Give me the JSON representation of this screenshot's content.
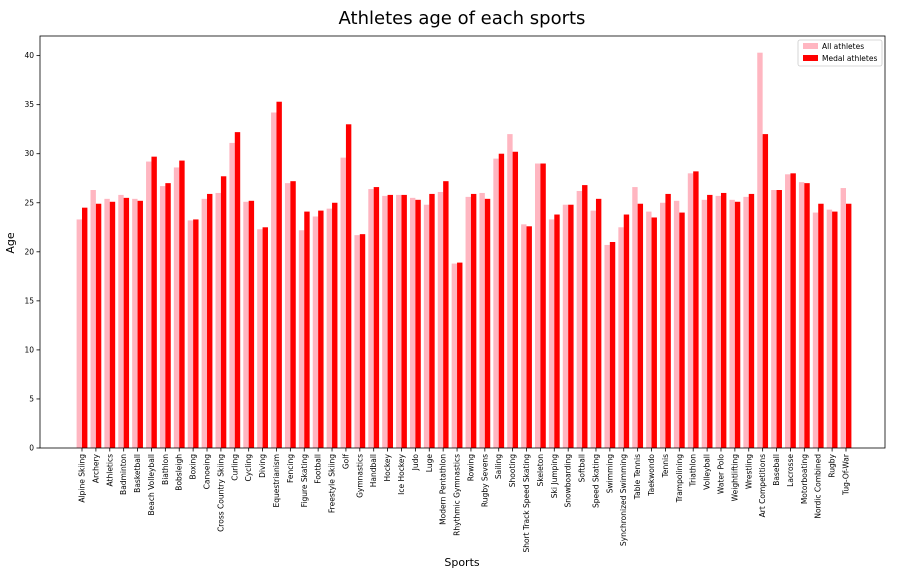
{
  "chart_data": {
    "type": "bar",
    "title": "Athletes age of each sports",
    "xlabel": "Sports",
    "ylabel": "Age",
    "ylim": [
      0,
      42
    ],
    "yticks": [
      0,
      5,
      10,
      15,
      20,
      25,
      30,
      35,
      40
    ],
    "grid": false,
    "legend_position": "top-right",
    "categories": [
      "Alpine Skiing",
      "Archery",
      "Athletics",
      "Badminton",
      "Basketball",
      "Beach Volleyball",
      "Biathlon",
      "Bobsleigh",
      "Boxing",
      "Canoeing",
      "Cross Country Skiing",
      "Curling",
      "Cycling",
      "Diving",
      "Equestrianism",
      "Fencing",
      "Figure Skating",
      "Football",
      "Freestyle Skiing",
      "Golf",
      "Gymnastics",
      "Handball",
      "Hockey",
      "Ice Hockey",
      "Judo",
      "Luge",
      "Modern Pentathlon",
      "Rhythmic Gymnastics",
      "Rowing",
      "Rugby Sevens",
      "Sailing",
      "Shooting",
      "Short Track Speed Skating",
      "Skeleton",
      "Ski Jumping",
      "Snowboarding",
      "Softball",
      "Speed Skating",
      "Swimming",
      "Synchronized Swimming",
      "Table Tennis",
      "Taekwondo",
      "Tennis",
      "Trampolining",
      "Triathlon",
      "Volleyball",
      "Water Polo",
      "Weightlifting",
      "Wrestling",
      "Art Competitions",
      "Baseball",
      "Lacrosse",
      "Motorboating",
      "Nordic Combined",
      "Rugby",
      "Tug-Of-War"
    ],
    "series": [
      {
        "name": "All athletes",
        "color": "#ffb6c1",
        "values": [
          23.3,
          26.3,
          25.4,
          25.8,
          25.4,
          29.2,
          26.7,
          28.6,
          23.2,
          25.4,
          26.0,
          31.1,
          25.1,
          22.3,
          34.2,
          27.0,
          22.2,
          23.6,
          24.4,
          29.6,
          21.7,
          26.4,
          25.7,
          25.8,
          25.5,
          24.8,
          26.1,
          18.8,
          25.6,
          26.0,
          29.5,
          32.0,
          22.8,
          29.0,
          23.3,
          24.8,
          26.2,
          24.2,
          20.7,
          22.5,
          26.6,
          24.1,
          25.0,
          25.2,
          28.0,
          25.3,
          25.7,
          25.3,
          25.6,
          40.3,
          26.3,
          27.9,
          27.1,
          24.0,
          24.3,
          26.5
        ]
      },
      {
        "name": "Medal athletes",
        "color": "#ff0000",
        "values": [
          24.5,
          24.9,
          25.1,
          25.5,
          25.2,
          29.7,
          27.0,
          29.3,
          23.3,
          25.9,
          27.7,
          32.2,
          25.2,
          22.5,
          35.3,
          27.2,
          24.1,
          24.2,
          25.0,
          33.0,
          21.8,
          26.6,
          25.8,
          25.8,
          25.3,
          25.9,
          27.2,
          18.9,
          25.9,
          25.4,
          30.0,
          30.2,
          22.6,
          29.0,
          23.8,
          24.8,
          26.8,
          25.4,
          21.0,
          23.8,
          24.9,
          23.5,
          25.9,
          24.0,
          28.2,
          25.8,
          26.0,
          25.1,
          25.9,
          32.0,
          26.3,
          28.0,
          27.0,
          24.9,
          24.1,
          24.9
        ]
      }
    ]
  }
}
